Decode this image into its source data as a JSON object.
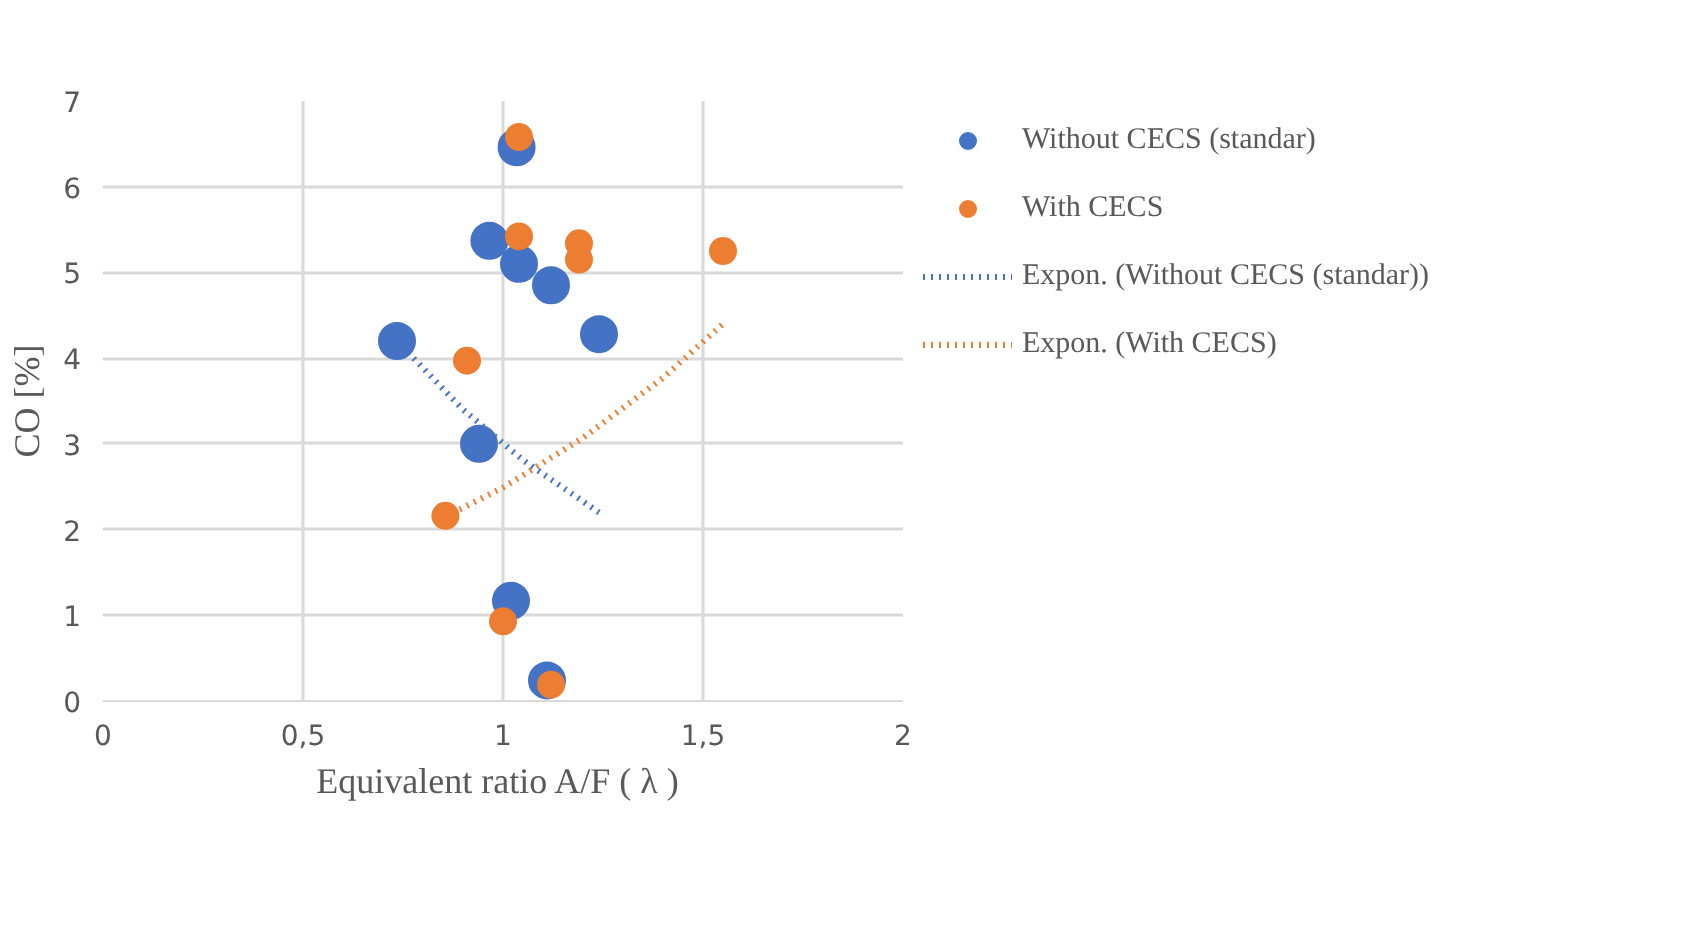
{
  "chart_data": {
    "type": "scatter",
    "xlabel": "Equivalent ratio A/F  ( λ )",
    "ylabel": "CO [%]",
    "xlim": [
      0,
      2
    ],
    "ylim": [
      0,
      7
    ],
    "xticks": [
      0,
      {
        "value": 0.5,
        "label": "0,5"
      },
      1,
      {
        "value": 1.5,
        "label": "1,5"
      },
      2
    ],
    "yticks": [
      0,
      1,
      2,
      3,
      4,
      5,
      6,
      7
    ],
    "grid": true,
    "legend": "right",
    "marker": "circle",
    "series": [
      {
        "name": "Without CECS (standar)",
        "color": "#4472c4",
        "x": [
          0.735,
          0.94,
          0.966,
          1.034,
          1.04,
          1.02,
          1.12,
          1.24,
          1.11
        ],
        "values": [
          4.2,
          3.0,
          5.37,
          6.46,
          5.1,
          1.17,
          4.85,
          4.28,
          0.24
        ]
      },
      {
        "name": "With CECS",
        "color": "#ed7d31",
        "x": [
          0.856,
          0.91,
          1.0,
          1.04,
          1.04,
          1.19,
          1.19,
          1.55,
          1.12
        ],
        "values": [
          2.16,
          3.97,
          0.93,
          6.58,
          5.42,
          5.34,
          5.15,
          5.25,
          0.19
        ]
      },
      {
        "name": "Expon. (Without CECS (standar))",
        "type": "line",
        "line_style": "dotted",
        "marker": "none",
        "color": "#4472c4",
        "x": [
          0.735,
          0.9,
          1.05,
          1.24
        ],
        "values": [
          4.2,
          3.4,
          2.81,
          2.2
        ]
      },
      {
        "name": "Expon. (With CECS)",
        "type": "line",
        "line_style": "dotted",
        "marker": "none",
        "color": "#ed7d31",
        "x": [
          0.856,
          1.0,
          1.2,
          1.4,
          1.55
        ],
        "values": [
          2.15,
          2.49,
          3.07,
          3.77,
          4.4
        ]
      }
    ]
  }
}
